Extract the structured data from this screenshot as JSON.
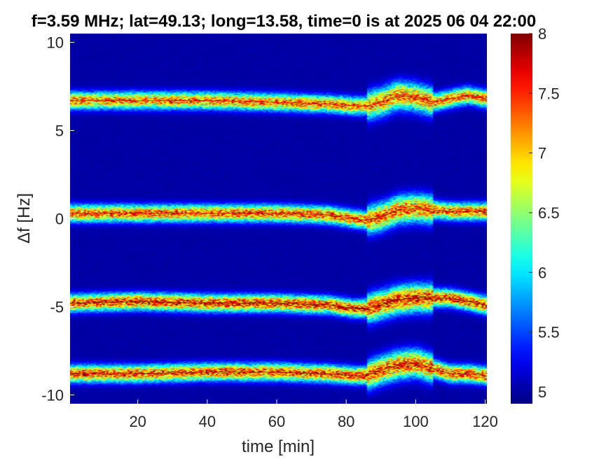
{
  "chart_data": {
    "type": "heatmap",
    "title": "f=3.59 MHz;  lat=49.13; long=13.58, time=0 is at 2025 06 04 22:00",
    "xlabel": "time [min]",
    "ylabel": "Δf [Hz]",
    "xlim": [
      0.5,
      120.5
    ],
    "ylim": [
      -10.5,
      10.5
    ],
    "xticks": [
      20,
      40,
      60,
      80,
      100,
      120
    ],
    "yticks": [
      10,
      5,
      0,
      -5,
      -10
    ],
    "ytick_labels": [
      "10",
      "5",
      "0",
      "-5",
      "-10"
    ],
    "colorbar": {
      "range": [
        4.9,
        8
      ],
      "ticks": [
        8,
        7.5,
        7,
        6.5,
        6,
        5.5,
        5
      ],
      "tick_labels": [
        "8",
        "7.5",
        "7",
        "6.5",
        "6",
        "5.5",
        "5"
      ],
      "colormap": "jet"
    },
    "background_value": 5,
    "series": [
      {
        "center_hz": 6.6,
        "peak_value": 7.7,
        "points": [
          [
            0,
            6.7
          ],
          [
            20,
            6.7
          ],
          [
            40,
            6.7
          ],
          [
            60,
            6.6
          ],
          [
            75,
            6.5
          ],
          [
            82,
            6.4
          ],
          [
            86,
            6.4
          ],
          [
            90,
            6.6
          ],
          [
            95,
            7.0
          ],
          [
            100,
            6.9
          ],
          [
            105,
            6.6
          ],
          [
            110,
            6.8
          ],
          [
            115,
            7.0
          ],
          [
            120,
            6.8
          ]
        ]
      },
      {
        "center_hz": 0.3,
        "peak_value": 7.8,
        "points": [
          [
            0,
            0.3
          ],
          [
            20,
            0.3
          ],
          [
            40,
            0.3
          ],
          [
            60,
            0.3
          ],
          [
            75,
            0.2
          ],
          [
            82,
            0.0
          ],
          [
            86,
            -0.1
          ],
          [
            90,
            0.1
          ],
          [
            95,
            0.5
          ],
          [
            100,
            0.6
          ],
          [
            105,
            0.5
          ],
          [
            110,
            0.4
          ],
          [
            115,
            0.4
          ],
          [
            120,
            0.4
          ]
        ]
      },
      {
        "center_hz": -4.8,
        "peak_value": 8.0,
        "points": [
          [
            0,
            -4.8
          ],
          [
            20,
            -4.7
          ],
          [
            40,
            -4.8
          ],
          [
            60,
            -4.8
          ],
          [
            75,
            -4.9
          ],
          [
            82,
            -5.1
          ],
          [
            86,
            -5.1
          ],
          [
            90,
            -4.9
          ],
          [
            95,
            -4.6
          ],
          [
            100,
            -4.5
          ],
          [
            105,
            -4.5
          ],
          [
            110,
            -4.5
          ],
          [
            115,
            -4.7
          ],
          [
            120,
            -4.9
          ]
        ]
      },
      {
        "center_hz": -8.7,
        "peak_value": 7.9,
        "points": [
          [
            0,
            -8.8
          ],
          [
            20,
            -8.8
          ],
          [
            40,
            -8.7
          ],
          [
            60,
            -8.7
          ],
          [
            75,
            -8.8
          ],
          [
            82,
            -8.9
          ],
          [
            86,
            -8.9
          ],
          [
            90,
            -8.6
          ],
          [
            95,
            -8.3
          ],
          [
            100,
            -8.2
          ],
          [
            105,
            -8.5
          ],
          [
            110,
            -8.8
          ],
          [
            115,
            -8.8
          ],
          [
            120,
            -8.9
          ]
        ]
      }
    ]
  }
}
